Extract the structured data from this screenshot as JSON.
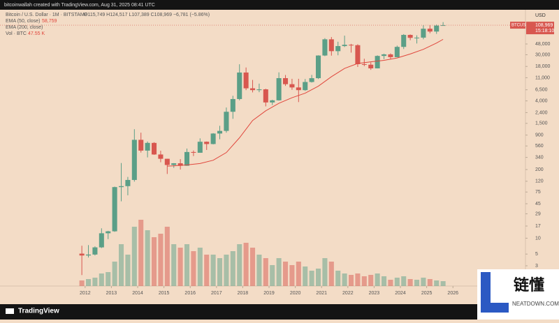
{
  "header": {
    "credit": "bitcoinwallah created with TradingView.com, Aug 31, 2025 08:41 UTC",
    "symbol": "Bitcoin / U.S. Dollar · 1M · BITSTAMP",
    "ohlc": "O115,749 H124,517 L107,389 C108,969 −6,781 (−5.86%)",
    "ema200": "EMA (200, close)",
    "volume_name": "Vol · BTC",
    "volume_value": "47.55 K",
    "currency": "USD",
    "ticker": "BTCUSD",
    "last_price": "108,969",
    "countdown": "15:18:10"
  },
  "footer": {
    "brand": "TradingView"
  },
  "watermark": {
    "name": "链懂",
    "site": "NEATDOWN.COM"
  },
  "chart_data": {
    "type": "candlestick",
    "log_scale": true,
    "up_color": "#5b9f87",
    "down_color": "#d8574f",
    "x": [
      2011.875,
      2012.125,
      2012.375,
      2012.625,
      2012.875,
      2013.125,
      2013.375,
      2013.625,
      2013.875,
      2014.125,
      2014.375,
      2014.625,
      2014.875,
      2015.125,
      2015.375,
      2015.625,
      2015.875,
      2016.125,
      2016.375,
      2016.625,
      2016.875,
      2017.125,
      2017.375,
      2017.625,
      2017.875,
      2018.125,
      2018.375,
      2018.625,
      2018.875,
      2019.125,
      2019.375,
      2019.625,
      2019.875,
      2020.125,
      2020.375,
      2020.625,
      2020.875,
      2021.125,
      2021.375,
      2021.625,
      2021.875,
      2022.125,
      2022.375,
      2022.625,
      2022.875,
      2023.125,
      2023.375,
      2023.625,
      2023.875,
      2024.125,
      2024.375,
      2024.625,
      2024.875,
      2025.125,
      2025.375,
      2025.625
    ],
    "open": [
      5.1,
      4.7,
      4.9,
      6.7,
      12.4,
      13.5,
      93,
      97,
      127,
      732,
      457,
      640,
      386,
      320,
      244,
      263,
      236,
      430,
      416,
      673,
      609,
      963,
      1080,
      2490,
      4340,
      13800,
      6930,
      6400,
      6630,
      3740,
      4100,
      10800,
      8300,
      7200,
      6400,
      9130,
      10780,
      28980,
      58800,
      35050,
      43800,
      46300,
      45500,
      19900,
      19430,
      16550,
      28480,
      30480,
      26970,
      42260,
      71300,
      62700,
      63300,
      93400,
      82500,
      107200
    ],
    "high": [
      7.2,
      7.4,
      7.0,
      15.4,
      13.8,
      95,
      266,
      145,
      1163,
      1000,
      680,
      660,
      455,
      320,
      265,
      315,
      500,
      460,
      780,
      680,
      980,
      1350,
      3000,
      5000,
      19800,
      17200,
      9990,
      8500,
      6800,
      4200,
      13900,
      12400,
      10500,
      10500,
      10400,
      12450,
      29300,
      61800,
      64900,
      52900,
      69000,
      48200,
      47400,
      25200,
      21500,
      29200,
      31400,
      31800,
      44700,
      73800,
      72800,
      70000,
      108300,
      109600,
      112000,
      124500
    ],
    "low": [
      2.0,
      4.3,
      4.7,
      6.5,
      9.6,
      13.2,
      50,
      65,
      118,
      420,
      340,
      380,
      275,
      165,
      215,
      200,
      235,
      360,
      415,
      470,
      600,
      750,
      1000,
      1830,
      4100,
      6400,
      5800,
      5850,
      3150,
      3350,
      4050,
      7700,
      6500,
      3800,
      6200,
      8900,
      10400,
      28200,
      28800,
      29300,
      42000,
      32900,
      17600,
      18200,
      15500,
      16500,
      24750,
      24900,
      26900,
      38500,
      56500,
      49000,
      58900,
      76600,
      74500,
      107200
    ],
    "close": [
      4.7,
      4.9,
      6.7,
      12.4,
      13.5,
      93,
      97,
      127,
      732,
      457,
      640,
      386,
      320,
      244,
      263,
      236,
      430,
      416,
      673,
      609,
      963,
      1080,
      2490,
      4340,
      13800,
      6930,
      6400,
      6630,
      3740,
      4100,
      10800,
      8300,
      7200,
      6400,
      9130,
      10780,
      28980,
      58800,
      35050,
      43800,
      46300,
      45500,
      19900,
      19430,
      16550,
      28480,
      30480,
      26970,
      42260,
      71300,
      62700,
      63300,
      93400,
      82500,
      107200,
      108969
    ],
    "volume": [
      8,
      10,
      12,
      18,
      20,
      35,
      60,
      45,
      85,
      95,
      80,
      70,
      75,
      85,
      60,
      55,
      60,
      50,
      55,
      45,
      45,
      40,
      45,
      50,
      60,
      62,
      55,
      45,
      40,
      30,
      40,
      35,
      30,
      35,
      28,
      22,
      25,
      40,
      35,
      22,
      18,
      16,
      18,
      14,
      16,
      18,
      14,
      9,
      12,
      14,
      10,
      9,
      12,
      10,
      8,
      7
    ],
    "volume_lim": [
      0,
      100
    ],
    "ema50": {
      "name": "EMA (50, close)",
      "color": "#e0463c",
      "value_label": "58,759",
      "x": [
        2015.125,
        2015.375,
        2015.875,
        2016.375,
        2016.875,
        2017.375,
        2017.875,
        2018.375,
        2018.875,
        2019.375,
        2019.875,
        2020.375,
        2020.875,
        2021.375,
        2021.875,
        2022.375,
        2022.875,
        2023.375,
        2023.875,
        2024.375,
        2024.875,
        2025.375,
        2025.625
      ],
      "values": [
        232,
        235,
        245,
        260,
        300,
        420,
        800,
        1700,
        2600,
        3600,
        4600,
        5600,
        7600,
        11500,
        16500,
        20500,
        22000,
        23500,
        26000,
        31000,
        38000,
        50000,
        58759
      ]
    },
    "xlim": [
      2008.76,
      2028.76
    ],
    "xticks": [
      2012,
      2013,
      2014,
      2015,
      2016,
      2017,
      2018,
      2019,
      2020,
      2021,
      2022,
      2023,
      2024,
      2025,
      2026
    ],
    "ylim": [
      1.24,
      189000
    ],
    "yticks": [
      3,
      5,
      10,
      17,
      29,
      45,
      75,
      120,
      200,
      340,
      560,
      900,
      {
        "value": 1500,
        "label": "1,500"
      },
      {
        "value": 2400,
        "label": "2,400"
      },
      {
        "value": 4000,
        "label": "4,000"
      },
      {
        "value": 6500,
        "label": "6,500"
      },
      {
        "value": 11000,
        "label": "11,000"
      },
      {
        "value": 18000,
        "label": "18,000"
      },
      {
        "value": 30000,
        "label": "30,000"
      },
      {
        "value": 48000,
        "label": "48,000"
      }
    ]
  }
}
